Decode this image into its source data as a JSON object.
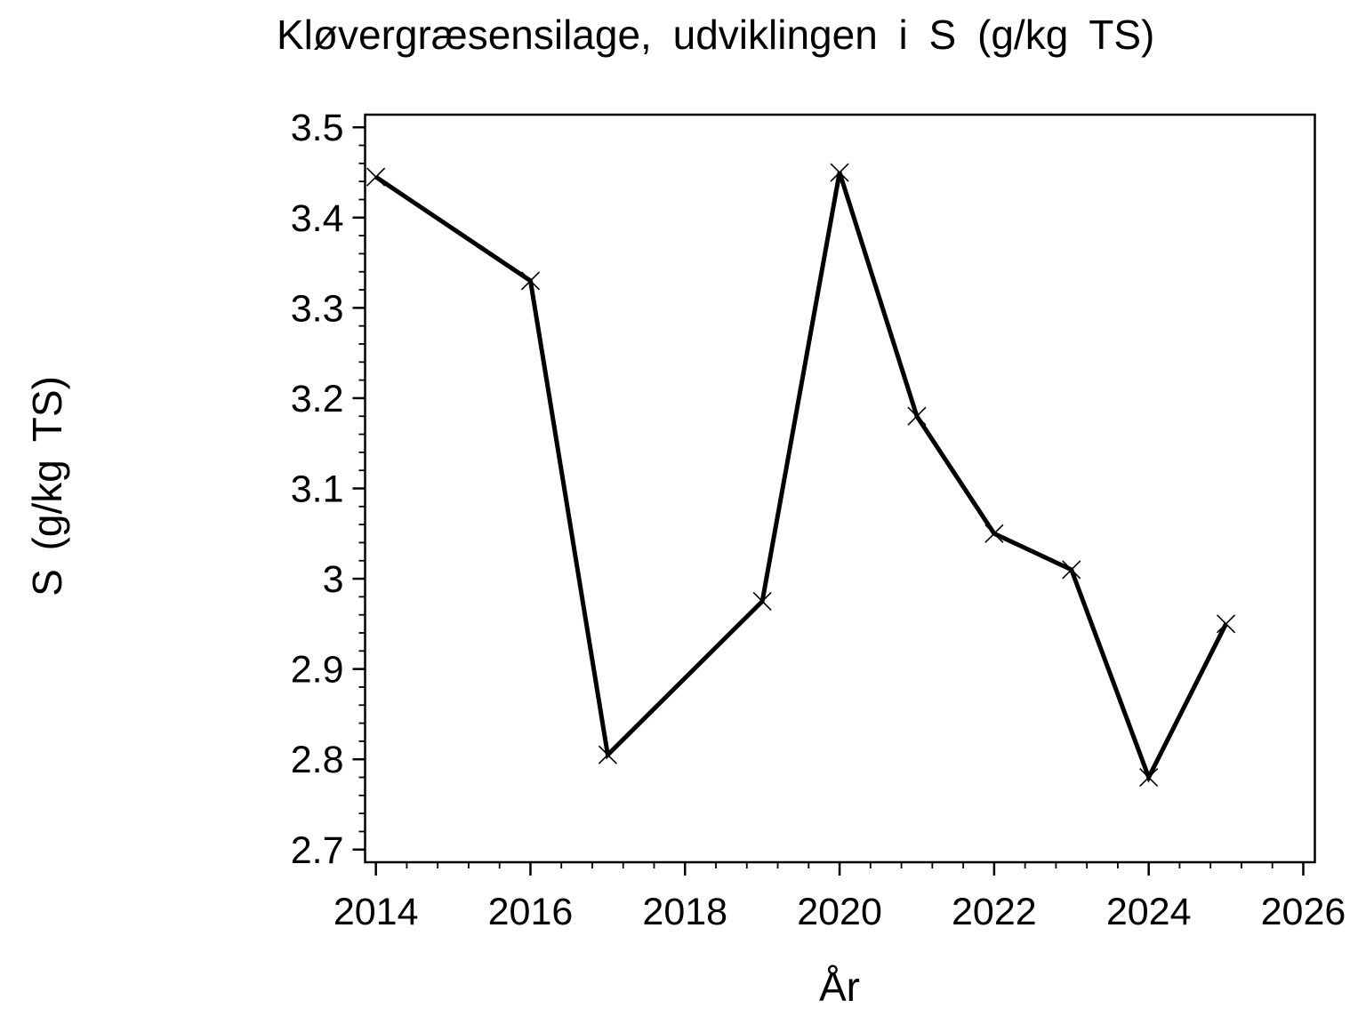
{
  "chart_data": {
    "type": "line",
    "title": "Kløvergræsensilage, udviklingen i S (g/kg TS)",
    "xlabel": "År",
    "ylabel": "S (g/kg TS)",
    "x": [
      2014,
      2016,
      2017,
      2019,
      2020,
      2021,
      2022,
      2023,
      2024,
      2025
    ],
    "y": [
      3.445,
      3.33,
      2.805,
      2.975,
      3.45,
      3.18,
      3.05,
      3.01,
      2.78,
      2.95
    ],
    "series_name": "S (g/kg TS)",
    "marker": "x",
    "grid": false,
    "legend": "none",
    "colors": {
      "line": "#000000",
      "marker": "#000000",
      "frame": "#000000",
      "background": "#ffffff"
    },
    "x_axis": {
      "lim": [
        2013.86,
        2026.15
      ],
      "major_ticks": [
        2014,
        2016,
        2018,
        2020,
        2022,
        2024,
        2026
      ],
      "major_labels": [
        "2014",
        "2016",
        "2018",
        "2020",
        "2022",
        "2024",
        "2026"
      ],
      "minor_step": 0.4
    },
    "y_axis": {
      "lim": [
        2.686,
        3.514
      ],
      "major_ticks": [
        3.5,
        3.4,
        3.3,
        3.2,
        3.1,
        3.0,
        2.9,
        2.8,
        2.7
      ],
      "major_labels": [
        "3.5",
        "3.4",
        "3.3",
        "3.2",
        "3.1",
        "3",
        "2.9",
        "2.8",
        "2.7"
      ],
      "minor_step": 0.02
    }
  }
}
